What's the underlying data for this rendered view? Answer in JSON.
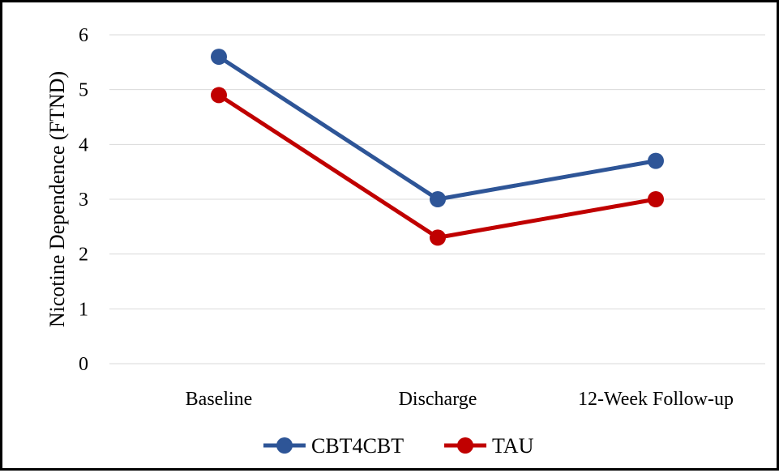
{
  "chart_data": {
    "type": "line",
    "title": "",
    "xlabel": "",
    "ylabel": "Nicotine Dependence (FTND)",
    "ylim": [
      0,
      6
    ],
    "yticks": [
      0,
      1,
      2,
      3,
      4,
      5,
      6
    ],
    "grid": true,
    "legend_position": "bottom",
    "categories": [
      "Baseline",
      "Discharge",
      "12-Week Follow-up"
    ],
    "series": [
      {
        "name": "CBT4CBT",
        "values": [
          5.6,
          3.0,
          3.7
        ],
        "color": "#2e5597"
      },
      {
        "name": "TAU",
        "values": [
          4.9,
          2.3,
          3.0
        ],
        "color": "#c00000"
      }
    ]
  }
}
